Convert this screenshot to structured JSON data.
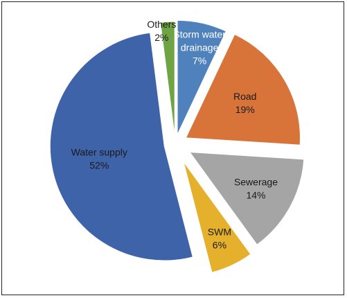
{
  "chart_data": {
    "type": "pie",
    "exploded": true,
    "slices": [
      {
        "label": "Storm water drainage",
        "label_lines": [
          "Storm water",
          "drainage"
        ],
        "value": 7,
        "value_text": "7%",
        "color": "#4F81BD",
        "text_color": "#ffffff"
      },
      {
        "label": "Road",
        "label_lines": [
          "Road"
        ],
        "value": 19,
        "value_text": "19%",
        "color": "#D8743A",
        "text_color": "#1a1a1a"
      },
      {
        "label": "Sewerage",
        "label_lines": [
          "Sewerage"
        ],
        "value": 14,
        "value_text": "14%",
        "color": "#A5A5A5",
        "text_color": "#1a1a1a"
      },
      {
        "label": "SWM",
        "label_lines": [
          "SWM"
        ],
        "value": 6,
        "value_text": "6%",
        "color": "#E5B12C",
        "text_color": "#1a1a1a"
      },
      {
        "label": "Water supply",
        "label_lines": [
          "Water supply"
        ],
        "value": 52,
        "value_text": "52%",
        "color": "#3E63A8",
        "text_color": "#1a1a1a"
      },
      {
        "label": "Others",
        "label_lines": [
          "Others"
        ],
        "value": 2,
        "value_text": "2%",
        "color": "#6FA444",
        "text_color": "#1a1a1a"
      }
    ]
  }
}
